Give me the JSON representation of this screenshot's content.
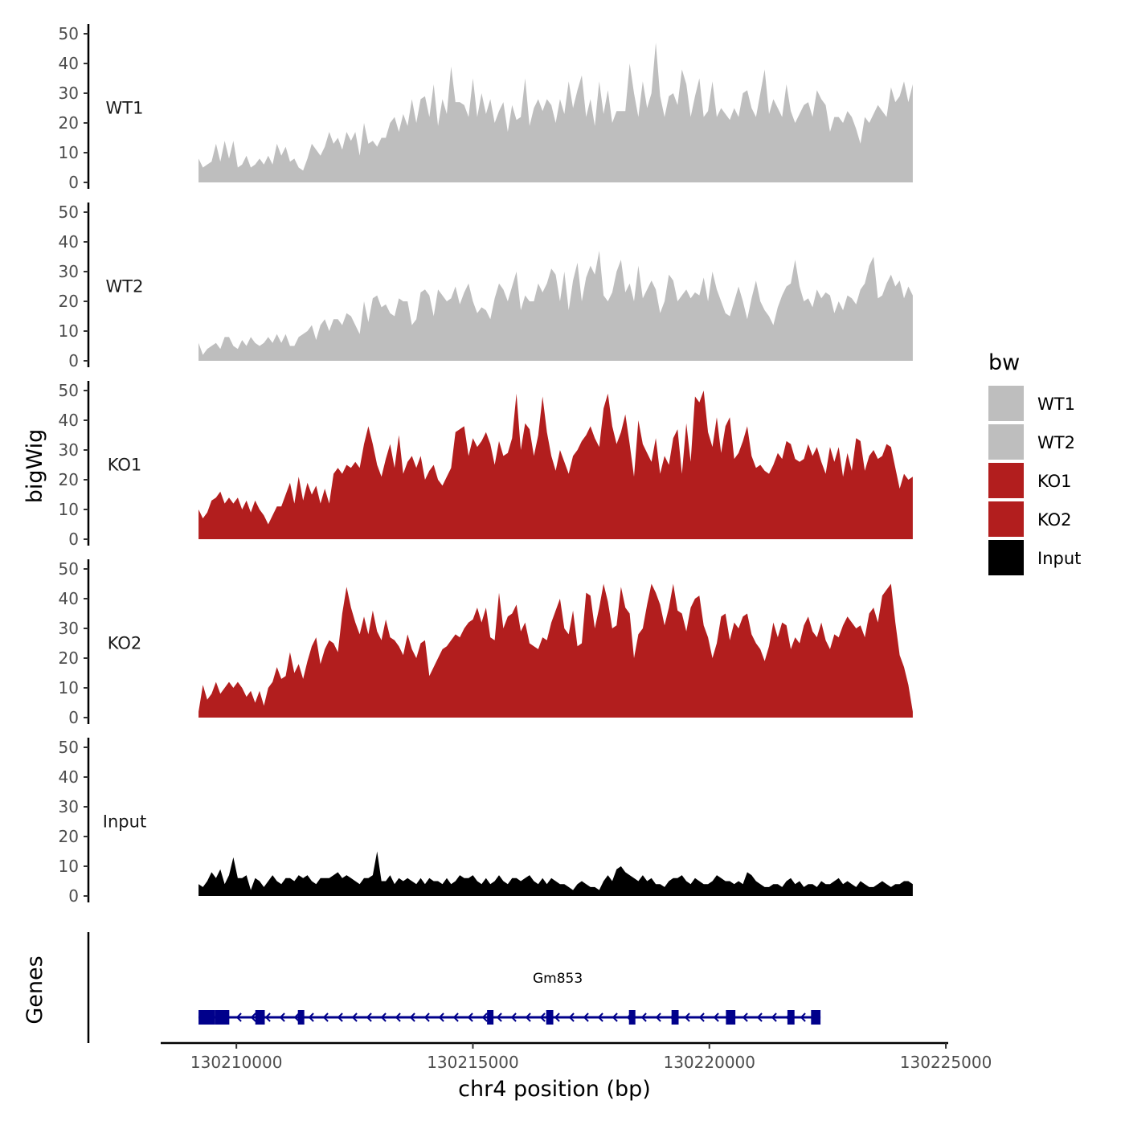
{
  "chart_data": {
    "type": "area",
    "x_start": 130209200,
    "x_end": 130224300,
    "xlabel": "chr4 position (bp)",
    "ylabel": "bigWig",
    "gene_track_label": "Genes",
    "x_ticks": [
      130210000,
      130215000,
      130220000,
      130225000
    ],
    "x_tick_labels": [
      "130210000",
      "130215000",
      "130220000",
      "130225000"
    ],
    "xlim": [
      130208400,
      130225050
    ],
    "ylim": [
      0,
      52
    ],
    "y_ticks": [
      0,
      10,
      20,
      30,
      40,
      50
    ],
    "y_tick_labels": [
      "0",
      "10",
      "20",
      "30",
      "40",
      "50"
    ],
    "legend": {
      "title": "bw",
      "entries": [
        {
          "label": "WT1",
          "color": "#BEBEBE"
        },
        {
          "label": "WT2",
          "color": "#BEBEBE"
        },
        {
          "label": "KO1",
          "color": "#B21E1E"
        },
        {
          "label": "KO2",
          "color": "#B21E1E"
        },
        {
          "label": "Input",
          "color": "#000000"
        }
      ]
    },
    "series": [
      {
        "name": "WT1",
        "color": "#BEBEBE",
        "values": [
          8,
          5,
          6,
          7,
          13,
          7,
          14,
          8,
          14,
          5,
          6,
          9,
          5,
          6,
          8,
          6,
          9,
          6,
          13,
          9,
          12,
          7,
          8,
          5,
          4,
          8,
          13,
          11,
          9,
          12,
          17,
          13,
          15,
          11,
          17,
          14,
          17,
          9,
          20,
          13,
          14,
          12,
          15,
          15,
          20,
          22,
          17,
          23,
          19,
          28,
          20,
          28,
          29,
          22,
          33,
          19,
          28,
          23,
          39,
          27,
          27,
          26,
          22,
          35,
          22,
          30,
          23,
          28,
          20,
          24,
          27,
          17,
          26,
          21,
          22,
          35,
          19,
          25,
          28,
          24,
          28,
          26,
          20,
          28,
          23,
          34,
          25,
          31,
          36,
          22,
          28,
          19,
          34,
          23,
          31,
          20,
          24,
          24,
          24,
          40,
          30,
          22,
          34,
          25,
          30,
          47,
          29,
          22,
          29,
          30,
          26,
          38,
          33,
          22,
          29,
          35,
          22,
          24,
          34,
          22,
          25,
          23,
          21,
          25,
          22,
          30,
          31,
          25,
          22,
          30,
          38,
          23,
          28,
          25,
          22,
          33,
          24,
          20,
          23,
          26,
          27,
          22,
          31,
          28,
          26,
          17,
          22,
          22,
          20,
          24,
          22,
          18,
          13,
          22,
          20,
          23,
          26,
          24,
          22,
          32,
          27,
          29,
          34,
          27,
          33
        ]
      },
      {
        "name": "WT2",
        "color": "#BEBEBE",
        "values": [
          6,
          2,
          4,
          5,
          6,
          4,
          8,
          8,
          5,
          4,
          7,
          5,
          8,
          6,
          5,
          6,
          8,
          6,
          9,
          6,
          9,
          5,
          5,
          8,
          9,
          10,
          12,
          7,
          12,
          14,
          10,
          14,
          14,
          12,
          16,
          15,
          12,
          9,
          20,
          13,
          21,
          22,
          18,
          19,
          16,
          15,
          21,
          20,
          20,
          12,
          14,
          23,
          24,
          22,
          15,
          24,
          22,
          20,
          21,
          25,
          19,
          23,
          26,
          20,
          16,
          18,
          17,
          14,
          21,
          26,
          24,
          20,
          25,
          30,
          17,
          22,
          20,
          20,
          26,
          23,
          26,
          31,
          29,
          20,
          30,
          17,
          27,
          33,
          20,
          28,
          32,
          29,
          37,
          22,
          20,
          23,
          30,
          34,
          23,
          26,
          20,
          32,
          21,
          24,
          27,
          24,
          16,
          20,
          29,
          27,
          20,
          22,
          24,
          21,
          23,
          22,
          28,
          20,
          30,
          24,
          20,
          16,
          15,
          20,
          25,
          20,
          14,
          21,
          27,
          20,
          17,
          15,
          12,
          18,
          22,
          25,
          26,
          34,
          25,
          20,
          21,
          18,
          24,
          21,
          23,
          22,
          16,
          20,
          17,
          22,
          21,
          19,
          24,
          26,
          32,
          35,
          21,
          22,
          26,
          29,
          25,
          27,
          21,
          25,
          22
        ]
      },
      {
        "name": "KO1",
        "color": "#B21E1E",
        "values": [
          10,
          7,
          9,
          13,
          14,
          16,
          12,
          14,
          12,
          14,
          10,
          13,
          9,
          13,
          10,
          8,
          5,
          8,
          11,
          11,
          15,
          19,
          12,
          21,
          13,
          19,
          15,
          18,
          12,
          17,
          12,
          22,
          24,
          22,
          25,
          24,
          26,
          24,
          32,
          38,
          32,
          25,
          21,
          27,
          32,
          24,
          35,
          22,
          26,
          28,
          24,
          28,
          20,
          23,
          25,
          20,
          18,
          21,
          24,
          36,
          37,
          38,
          28,
          34,
          31,
          33,
          36,
          32,
          25,
          33,
          28,
          29,
          34,
          49,
          30,
          39,
          37,
          28,
          35,
          48,
          36,
          28,
          23,
          30,
          26,
          22,
          28,
          30,
          33,
          35,
          38,
          34,
          31,
          44,
          49,
          38,
          32,
          36,
          42,
          32,
          21,
          40,
          32,
          29,
          26,
          34,
          22,
          28,
          25,
          34,
          37,
          22,
          39,
          26,
          48,
          46,
          50,
          36,
          31,
          41,
          29,
          38,
          41,
          27,
          29,
          33,
          38,
          28,
          24,
          25,
          23,
          22,
          25,
          29,
          27,
          33,
          32,
          27,
          26,
          27,
          32,
          28,
          31,
          26,
          22,
          31,
          26,
          31,
          21,
          29,
          23,
          34,
          33,
          23,
          28,
          30,
          27,
          28,
          32,
          31,
          24,
          17,
          22,
          20,
          21
        ]
      },
      {
        "name": "KO2",
        "color": "#B21E1E",
        "values": [
          2,
          11,
          6,
          8,
          12,
          8,
          10,
          12,
          10,
          12,
          10,
          7,
          9,
          5,
          9,
          4,
          10,
          12,
          17,
          13,
          14,
          22,
          15,
          18,
          13,
          19,
          24,
          27,
          18,
          23,
          26,
          25,
          22,
          35,
          44,
          37,
          32,
          28,
          34,
          28,
          36,
          29,
          26,
          33,
          27,
          26,
          24,
          21,
          28,
          23,
          20,
          25,
          26,
          14,
          17,
          20,
          23,
          24,
          26,
          28,
          27,
          30,
          32,
          33,
          37,
          32,
          37,
          27,
          26,
          42,
          30,
          34,
          35,
          38,
          29,
          32,
          25,
          24,
          23,
          27,
          26,
          32,
          36,
          40,
          30,
          28,
          36,
          24,
          25,
          42,
          41,
          30,
          37,
          45,
          39,
          30,
          31,
          44,
          37,
          35,
          20,
          28,
          30,
          38,
          45,
          42,
          38,
          31,
          37,
          45,
          36,
          35,
          29,
          37,
          40,
          41,
          31,
          27,
          20,
          25,
          34,
          35,
          26,
          32,
          30,
          34,
          35,
          28,
          25,
          23,
          19,
          24,
          32,
          27,
          32,
          31,
          23,
          27,
          25,
          31,
          34,
          29,
          27,
          32,
          26,
          23,
          28,
          27,
          31,
          34,
          32,
          30,
          31,
          27,
          35,
          37,
          32,
          41,
          43,
          45,
          32,
          21,
          17,
          11,
          2
        ]
      },
      {
        "name": "Input",
        "color": "#000000",
        "values": [
          4,
          3,
          5,
          8,
          6,
          9,
          4,
          7,
          13,
          6,
          6,
          7,
          2,
          6,
          5,
          3,
          5,
          7,
          5,
          4,
          6,
          6,
          5,
          7,
          6,
          7,
          5,
          4,
          6,
          6,
          6,
          7,
          8,
          6,
          7,
          6,
          5,
          4,
          6,
          6,
          7,
          15,
          5,
          5,
          7,
          4,
          6,
          5,
          6,
          5,
          4,
          6,
          4,
          6,
          5,
          5,
          4,
          6,
          4,
          5,
          7,
          6,
          6,
          7,
          5,
          4,
          6,
          4,
          5,
          7,
          5,
          4,
          6,
          6,
          5,
          6,
          7,
          5,
          4,
          6,
          4,
          6,
          5,
          4,
          4,
          3,
          2,
          4,
          5,
          4,
          3,
          3,
          2,
          5,
          7,
          5,
          9,
          10,
          8,
          7,
          6,
          5,
          7,
          5,
          6,
          4,
          4,
          3,
          5,
          6,
          6,
          7,
          5,
          4,
          6,
          5,
          4,
          4,
          5,
          7,
          6,
          5,
          5,
          4,
          5,
          4,
          8,
          7,
          5,
          4,
          3,
          3,
          4,
          4,
          3,
          5,
          6,
          4,
          5,
          3,
          4,
          4,
          3,
          5,
          4,
          4,
          5,
          6,
          4,
          5,
          4,
          3,
          5,
          4,
          3,
          3,
          4,
          5,
          4,
          3,
          4,
          4,
          5,
          5,
          4
        ]
      }
    ],
    "genes": [
      {
        "name": "Gm853",
        "start": 130209200,
        "end": 130222350,
        "strand": "-",
        "exons": [
          [
            130209200,
            130209550
          ],
          [
            130209550,
            130209850
          ],
          [
            130210400,
            130210600
          ],
          [
            130211300,
            130211400
          ],
          [
            130215300,
            130215420
          ],
          [
            130216550,
            130216700
          ],
          [
            130218300,
            130218400
          ],
          [
            130219200,
            130219350
          ],
          [
            130220350,
            130220550
          ],
          [
            130221650,
            130221800
          ],
          [
            130222150,
            130222350
          ]
        ]
      }
    ]
  }
}
